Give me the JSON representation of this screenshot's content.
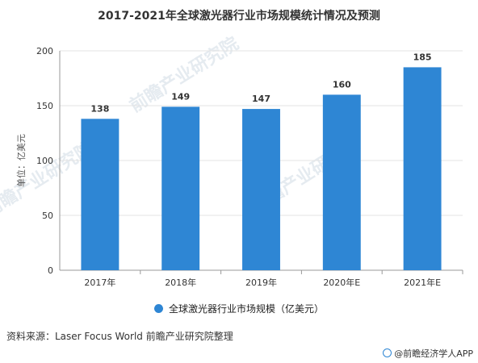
{
  "chart_data": {
    "type": "bar",
    "title": "2017-2021年全球激光器行业市场规模统计情况及预测",
    "categories": [
      "2017年",
      "2018年",
      "2019年",
      "2020年E",
      "2021年E"
    ],
    "series": [
      {
        "name": "全球激光器行业市场规模（亿美元）",
        "values": [
          138,
          149,
          147,
          160,
          185
        ],
        "color": "#2e86d4"
      }
    ],
    "ylabel": "单位：亿美元",
    "xlabel": "",
    "ylim": [
      0,
      200
    ],
    "yticks": [
      0,
      50,
      100,
      150,
      200
    ],
    "grid": true,
    "legend_position": "bottom"
  },
  "source_text": "资料来源：Laser Focus World 前瞻产业研究院整理",
  "footer_brand": "@前瞻经济学人APP",
  "watermark_text": "前瞻产业研究院",
  "colors": {
    "bar": "#2e86d4",
    "grid": "#e3e3e3",
    "axis": "#999999"
  }
}
